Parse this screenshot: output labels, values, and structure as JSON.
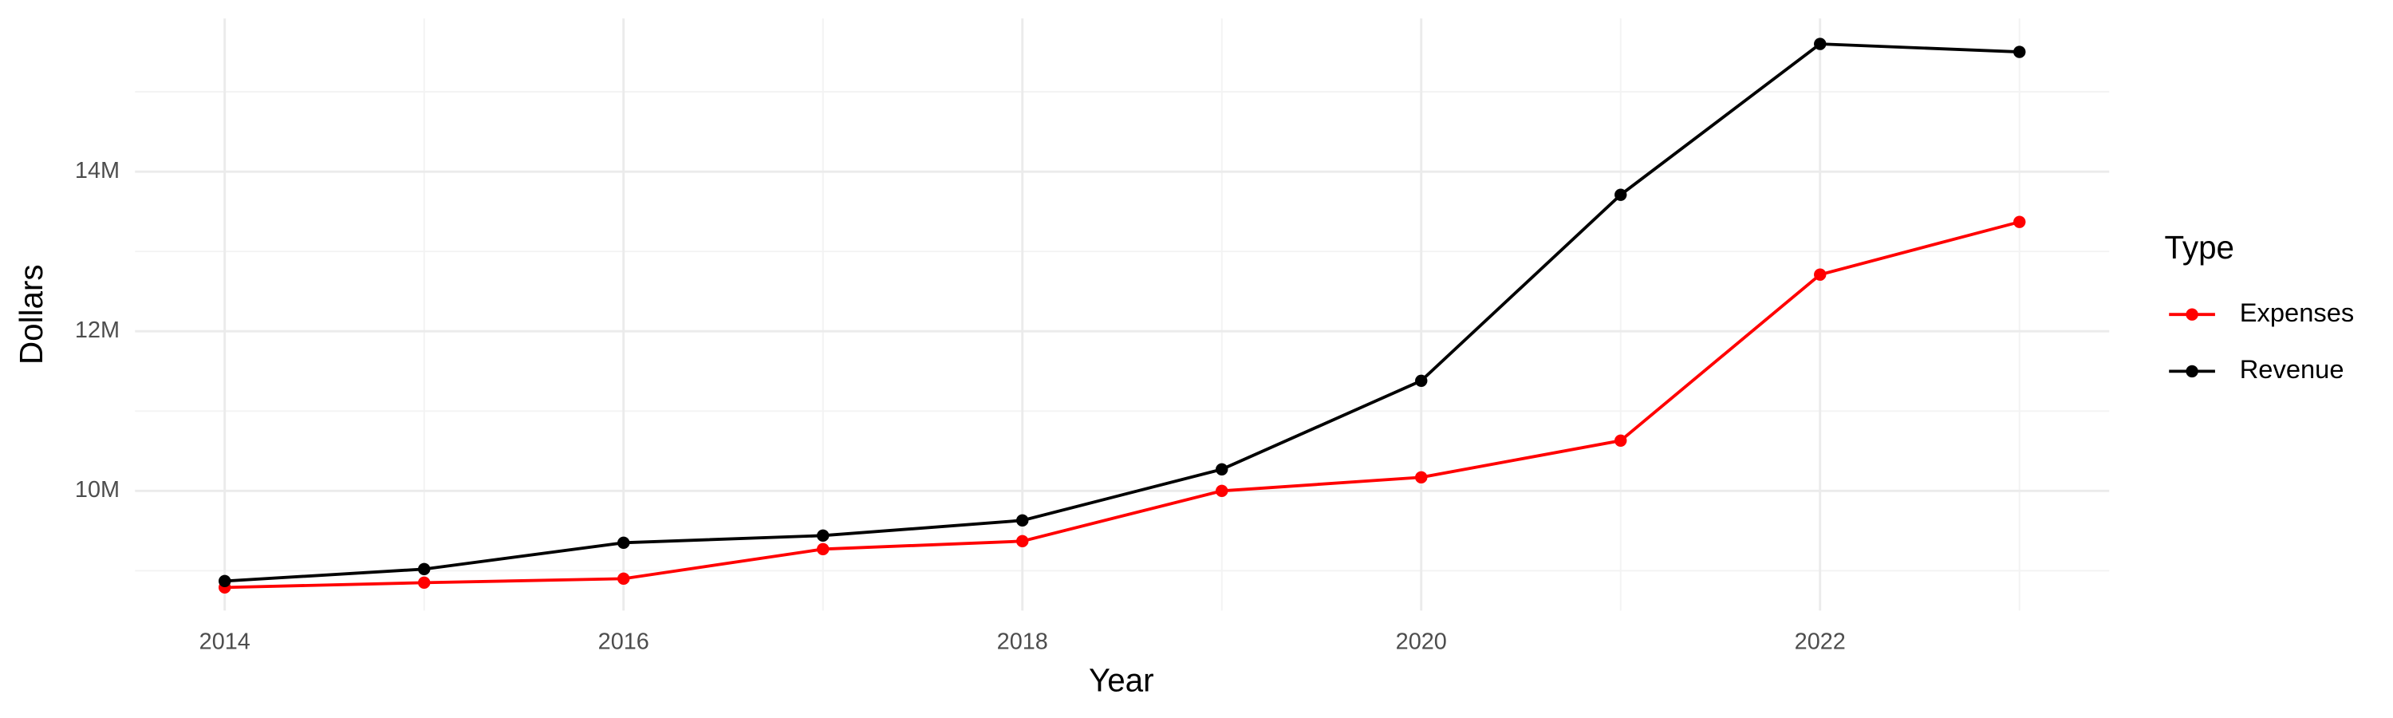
{
  "chart_data": {
    "type": "line",
    "x_label": "Year",
    "y_label": "Dollars",
    "legend_title": "Type",
    "legend_position": "right",
    "grid": true,
    "x": [
      2014,
      2015,
      2016,
      2017,
      2018,
      2019,
      2020,
      2021,
      2022,
      2023
    ],
    "series": [
      {
        "name": "Expenses",
        "color": "#ff0000",
        "values": [
          8790000,
          8850000,
          8900000,
          9270000,
          9370000,
          10000000,
          10170000,
          10630000,
          12710000,
          13370000
        ]
      },
      {
        "name": "Revenue",
        "color": "#000000",
        "values": [
          8870000,
          9020000,
          9350000,
          9440000,
          9630000,
          10270000,
          11380000,
          13710000,
          15600000,
          15500000
        ]
      }
    ],
    "xlim": [
      2013.55,
      2023.45
    ],
    "xticks": [
      2014,
      2016,
      2018,
      2020,
      2022
    ],
    "ylim": [
      8500000,
      15920000
    ],
    "yticks": [
      {
        "value": 10000000,
        "label": "10M"
      },
      {
        "value": 12000000,
        "label": "12M"
      },
      {
        "value": 14000000,
        "label": "14M"
      }
    ]
  }
}
